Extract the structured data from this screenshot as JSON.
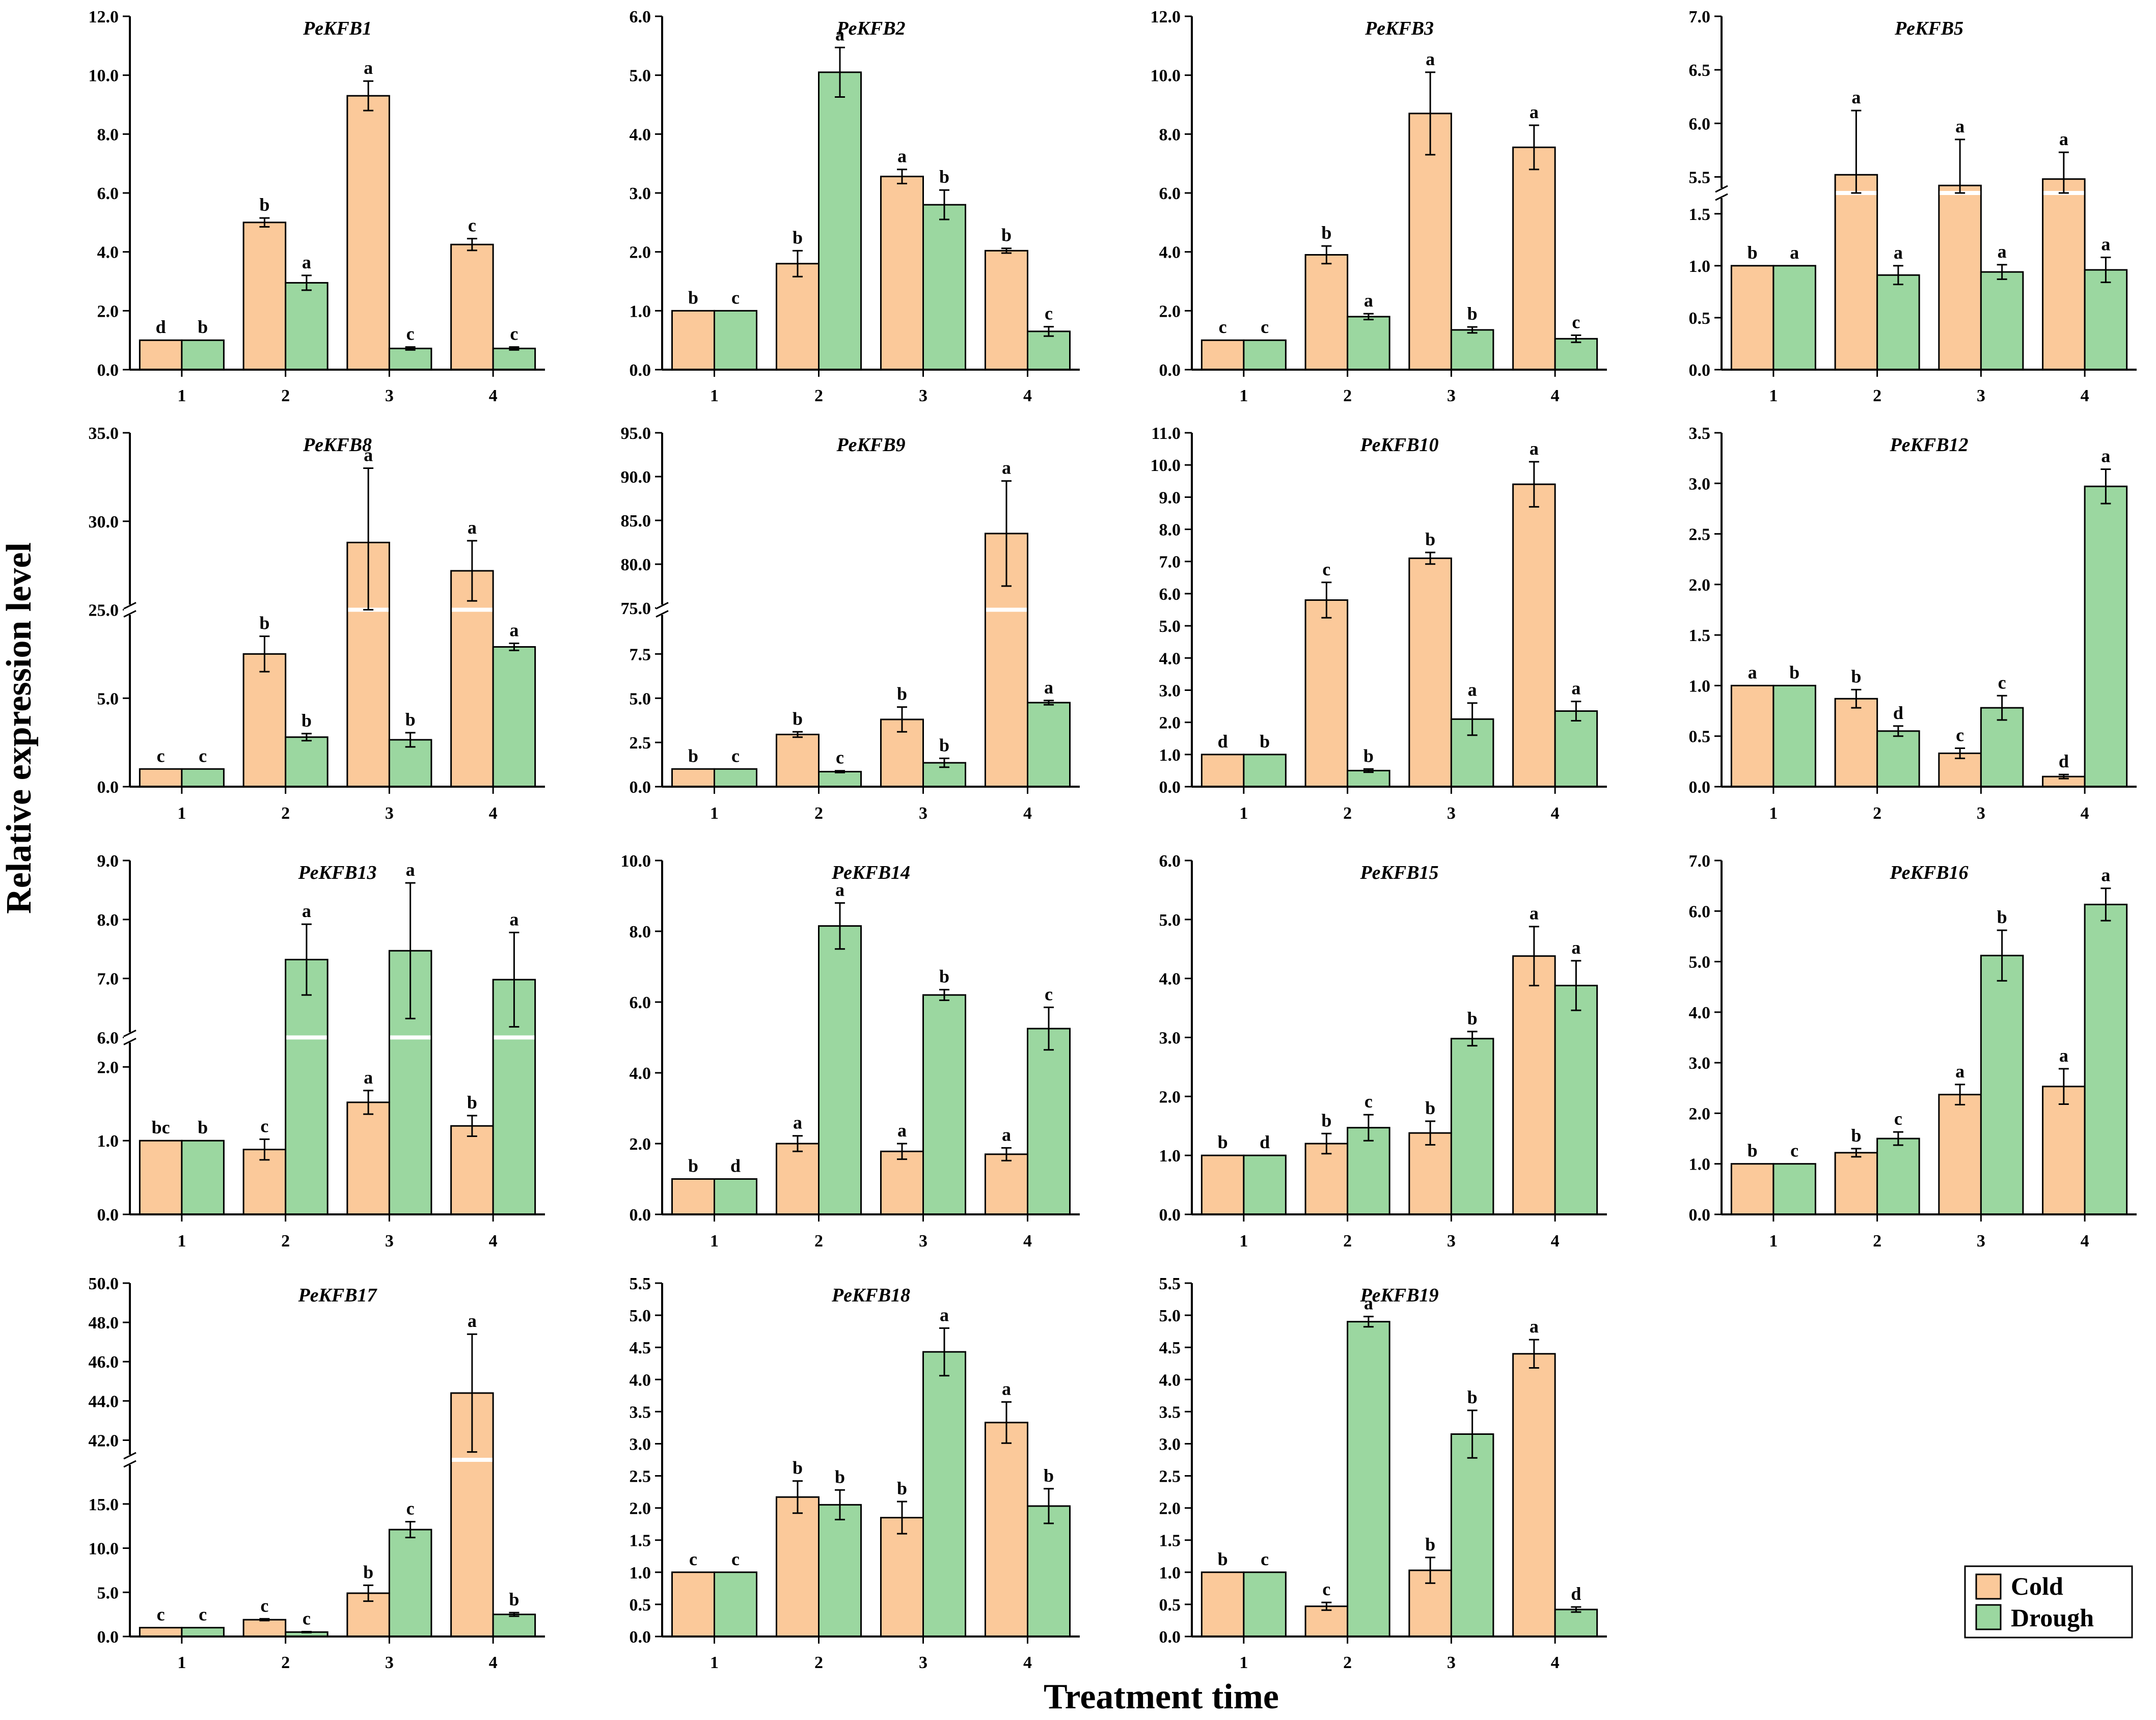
{
  "chart_data": {
    "type": "bar",
    "ylabel": "Relative expression level",
    "xlabel": "Treatment time",
    "legend": [
      {
        "name": "Cold",
        "color": "#FBC99A"
      },
      {
        "name": "Drough",
        "color": "#9BD7A0"
      }
    ],
    "colors": {
      "cold": "#FBC99A",
      "drought": "#9BD7A0",
      "edge": "#000000"
    },
    "categories": [
      "1",
      "2",
      "3",
      "4"
    ],
    "panels": [
      {
        "title": "PeKFB1",
        "ylim": [
          0,
          12
        ],
        "yticks": [
          0,
          2,
          4,
          6,
          8,
          10,
          12
        ],
        "ytick_labels": [
          "0.0",
          "2.0",
          "4.0",
          "6.0",
          "8.0",
          "10.0",
          "12.0"
        ],
        "series": [
          {
            "name": "Cold",
            "values": [
              1.0,
              5.0,
              9.3,
              4.25
            ],
            "errors": [
              0,
              0.15,
              0.5,
              0.2
            ],
            "letters": [
              "d",
              "b",
              "a",
              "c"
            ]
          },
          {
            "name": "Drough",
            "values": [
              1.0,
              2.95,
              0.72,
              0.72
            ],
            "errors": [
              0,
              0.25,
              0.05,
              0.05
            ],
            "letters": [
              "b",
              "a",
              "c",
              "c"
            ]
          }
        ]
      },
      {
        "title": "PeKFB2",
        "ylim": [
          0,
          6
        ],
        "yticks": [
          0,
          1,
          2,
          3,
          4,
          5,
          6
        ],
        "ytick_labels": [
          "0.0",
          "1.0",
          "2.0",
          "3.0",
          "4.0",
          "5.0",
          "6.0"
        ],
        "series": [
          {
            "name": "Cold",
            "values": [
              1.0,
              1.8,
              3.28,
              2.02
            ],
            "errors": [
              0,
              0.22,
              0.12,
              0.04
            ],
            "letters": [
              "b",
              "b",
              "a",
              "b"
            ]
          },
          {
            "name": "Drough",
            "values": [
              1.0,
              5.05,
              2.8,
              0.65
            ],
            "errors": [
              0,
              0.42,
              0.25,
              0.08
            ],
            "letters": [
              "c",
              "a",
              "b",
              "c"
            ]
          }
        ]
      },
      {
        "title": "PeKFB3",
        "ylim": [
          0,
          12
        ],
        "yticks": [
          0,
          2,
          4,
          6,
          8,
          10,
          12
        ],
        "ytick_labels": [
          "0.0",
          "2.0",
          "4.0",
          "6.0",
          "8.0",
          "10.0",
          "12.0"
        ],
        "series": [
          {
            "name": "Cold",
            "values": [
              1.0,
              3.9,
              8.7,
              7.55
            ],
            "errors": [
              0,
              0.3,
              1.4,
              0.75
            ],
            "letters": [
              "c",
              "b",
              "a",
              "a"
            ]
          },
          {
            "name": "Drough",
            "values": [
              1.0,
              1.8,
              1.35,
              1.05
            ],
            "errors": [
              0,
              0.1,
              0.1,
              0.12
            ],
            "letters": [
              "c",
              "a",
              "b",
              "c"
            ]
          }
        ]
      },
      {
        "title": "PeKFB5",
        "break": {
          "at": 1.7,
          "from": 5.35,
          "frac": 0.5
        },
        "ylim": [
          0,
          7
        ],
        "yticks": [
          0,
          0.5,
          1,
          1.5,
          5.5,
          6,
          6.5,
          7
        ],
        "ytick_labels": [
          "0.0",
          "0.5",
          "1.0",
          "1.5",
          "5.5",
          "6.0",
          "6.5",
          "7.0"
        ],
        "series": [
          {
            "name": "Cold",
            "values": [
              1.0,
              5.52,
              5.42,
              5.48
            ],
            "errors": [
              0,
              0.6,
              0.43,
              0.25
            ],
            "letters": [
              "b",
              "a",
              "a",
              "a"
            ]
          },
          {
            "name": "Drough",
            "values": [
              1.0,
              0.91,
              0.94,
              0.96
            ],
            "errors": [
              0,
              0.09,
              0.07,
              0.12
            ],
            "letters": [
              "a",
              "a",
              "a",
              "a"
            ]
          }
        ]
      },
      {
        "title": "PeKFB8",
        "break": {
          "at": 10,
          "from": 25,
          "frac": 0.5
        },
        "ylim": [
          0,
          35
        ],
        "yticks": [
          0,
          5,
          25,
          30,
          35
        ],
        "ytick_labels": [
          "0.0",
          "5.0",
          "25.0",
          "30.0",
          "35.0"
        ],
        "series": [
          {
            "name": "Cold",
            "values": [
              1.0,
              7.5,
              28.8,
              27.2
            ],
            "errors": [
              0,
              1.0,
              4.2,
              1.7
            ],
            "letters": [
              "c",
              "b",
              "a",
              "a"
            ]
          },
          {
            "name": "Drough",
            "values": [
              1.0,
              2.8,
              2.65,
              7.9
            ],
            "errors": [
              0,
              0.2,
              0.4,
              0.2
            ],
            "letters": [
              "c",
              "b",
              "b",
              "a"
            ]
          }
        ]
      },
      {
        "title": "PeKFB9",
        "break": {
          "at": 10,
          "from": 74.8,
          "frac": 0.5
        },
        "ylim": [
          0,
          95
        ],
        "yticks": [
          0,
          2.5,
          5,
          7.5,
          75,
          80,
          85,
          90,
          95
        ],
        "ytick_labels": [
          "0.0",
          "2.5",
          "5.0",
          "7.5",
          "75.0",
          "80.0",
          "85.0",
          "90.0",
          "95.0"
        ],
        "series": [
          {
            "name": "Cold",
            "values": [
              1.0,
              2.95,
              3.8,
              83.5
            ],
            "errors": [
              0,
              0.15,
              0.7,
              6.0
            ],
            "letters": [
              "b",
              "b",
              "b",
              "a"
            ]
          },
          {
            "name": "Drough",
            "values": [
              1.0,
              0.85,
              1.35,
              4.75
            ],
            "errors": [
              0,
              0.05,
              0.25,
              0.12
            ],
            "letters": [
              "c",
              "c",
              "b",
              "a"
            ]
          }
        ]
      },
      {
        "title": "PeKFB10",
        "ylim": [
          0,
          11
        ],
        "yticks": [
          0,
          1,
          2,
          3,
          4,
          5,
          6,
          7,
          8,
          9,
          10,
          11
        ],
        "ytick_labels": [
          "0.0",
          "1.0",
          "2.0",
          "3.0",
          "4.0",
          "5.0",
          "6.0",
          "7.0",
          "8.0",
          "9.0",
          "10.0",
          "11.0"
        ],
        "series": [
          {
            "name": "Cold",
            "values": [
              1.0,
              5.8,
              7.1,
              9.4
            ],
            "errors": [
              0,
              0.55,
              0.18,
              0.7
            ],
            "letters": [
              "d",
              "c",
              "b",
              "a"
            ]
          },
          {
            "name": "Drough",
            "values": [
              1.0,
              0.5,
              2.1,
              2.35
            ],
            "errors": [
              0,
              0.05,
              0.5,
              0.3
            ],
            "letters": [
              "b",
              "b",
              "a",
              "a"
            ]
          }
        ]
      },
      {
        "title": "PeKFB12",
        "ylim": [
          0,
          3.5
        ],
        "yticks": [
          0,
          0.5,
          1,
          1.5,
          2,
          2.5,
          3,
          3.5
        ],
        "ytick_labels": [
          "0.0",
          "0.5",
          "1.0",
          "1.5",
          "2.0",
          "2.5",
          "3.0",
          "3.5"
        ],
        "series": [
          {
            "name": "Cold",
            "values": [
              1.0,
              0.87,
              0.33,
              0.1
            ],
            "errors": [
              0,
              0.09,
              0.05,
              0.02
            ],
            "letters": [
              "a",
              "b",
              "c",
              "d"
            ]
          },
          {
            "name": "Drough",
            "values": [
              1.0,
              0.55,
              0.78,
              2.97
            ],
            "errors": [
              0,
              0.05,
              0.12,
              0.17
            ],
            "letters": [
              "b",
              "d",
              "c",
              "a"
            ]
          }
        ]
      },
      {
        "title": "PeKFB13",
        "break": {
          "at": 2.4,
          "from": 6,
          "frac": 0.5
        },
        "ylim": [
          0,
          9
        ],
        "yticks": [
          0,
          1,
          2,
          6,
          7,
          8,
          9
        ],
        "ytick_labels": [
          "0.0",
          "1.0",
          "2.0",
          "6.0",
          "7.0",
          "8.0",
          "9.0"
        ],
        "series": [
          {
            "name": "Cold",
            "values": [
              1.0,
              0.88,
              1.52,
              1.2
            ],
            "errors": [
              0,
              0.14,
              0.16,
              0.14
            ],
            "letters": [
              "bc",
              "c",
              "a",
              "b"
            ]
          },
          {
            "name": "Drough",
            "values": [
              1.0,
              7.32,
              7.47,
              6.98
            ],
            "errors": [
              0,
              0.6,
              1.15,
              0.8
            ],
            "letters": [
              "b",
              "a",
              "a",
              "a"
            ]
          }
        ]
      },
      {
        "title": "PeKFB14",
        "ylim": [
          0,
          10
        ],
        "yticks": [
          0,
          2,
          4,
          6,
          8,
          10
        ],
        "ytick_labels": [
          "0.0",
          "2.0",
          "4.0",
          "6.0",
          "8.0",
          "10.0"
        ],
        "series": [
          {
            "name": "Cold",
            "values": [
              1.0,
              2.0,
              1.78,
              1.7
            ],
            "errors": [
              0,
              0.22,
              0.22,
              0.18
            ],
            "letters": [
              "b",
              "a",
              "a",
              "a"
            ]
          },
          {
            "name": "Drough",
            "values": [
              1.0,
              8.15,
              6.2,
              5.25
            ],
            "errors": [
              0,
              0.65,
              0.15,
              0.6
            ],
            "letters": [
              "d",
              "a",
              "b",
              "c"
            ]
          }
        ]
      },
      {
        "title": "PeKFB15",
        "ylim": [
          0,
          6
        ],
        "yticks": [
          0,
          1,
          2,
          3,
          4,
          5,
          6
        ],
        "ytick_labels": [
          "0.0",
          "1.0",
          "2.0",
          "3.0",
          "4.0",
          "5.0",
          "6.0"
        ],
        "series": [
          {
            "name": "Cold",
            "values": [
              1.0,
              1.2,
              1.38,
              4.38
            ],
            "errors": [
              0,
              0.17,
              0.2,
              0.5
            ],
            "letters": [
              "b",
              "b",
              "b",
              "a"
            ]
          },
          {
            "name": "Drough",
            "values": [
              1.0,
              1.47,
              2.98,
              3.88
            ],
            "errors": [
              0,
              0.22,
              0.12,
              0.42
            ],
            "letters": [
              "d",
              "c",
              "b",
              "a"
            ]
          }
        ]
      },
      {
        "title": "PeKFB16",
        "ylim": [
          0,
          7
        ],
        "yticks": [
          0,
          1,
          2,
          3,
          4,
          5,
          6,
          7
        ],
        "ytick_labels": [
          "0.0",
          "1.0",
          "2.0",
          "3.0",
          "4.0",
          "5.0",
          "6.0",
          "7.0"
        ],
        "series": [
          {
            "name": "Cold",
            "values": [
              1.0,
              1.22,
              2.37,
              2.53
            ],
            "errors": [
              0,
              0.08,
              0.2,
              0.35
            ],
            "letters": [
              "b",
              "b",
              "a",
              "a"
            ]
          },
          {
            "name": "Drough",
            "values": [
              1.0,
              1.5,
              5.12,
              6.13
            ],
            "errors": [
              0,
              0.13,
              0.5,
              0.32
            ],
            "letters": [
              "c",
              "c",
              "b",
              "a"
            ]
          }
        ]
      },
      {
        "title": "PeKFB17",
        "break": {
          "at": 20,
          "from": 41,
          "frac": 0.5
        },
        "ylim": [
          0,
          50
        ],
        "yticks": [
          0,
          5,
          10,
          15,
          42,
          44,
          46,
          48,
          50
        ],
        "ytick_labels": [
          "0.0",
          "5.0",
          "10.0",
          "15.0",
          "42.0",
          "44.0",
          "46.0",
          "48.0",
          "50.0"
        ],
        "series": [
          {
            "name": "Cold",
            "values": [
              1.0,
              1.9,
              4.9,
              44.4
            ],
            "errors": [
              0,
              0.1,
              0.9,
              3.0
            ],
            "letters": [
              "c",
              "c",
              "b",
              "a"
            ]
          },
          {
            "name": "Drough",
            "values": [
              1.0,
              0.5,
              12.1,
              2.5
            ],
            "errors": [
              0,
              0.05,
              0.9,
              0.2
            ],
            "letters": [
              "c",
              "c",
              "c",
              "b"
            ]
          }
        ]
      },
      {
        "title": "PeKFB18",
        "ylim": [
          0,
          5.5
        ],
        "yticks": [
          0,
          0.5,
          1,
          1.5,
          2,
          2.5,
          3,
          3.5,
          4,
          4.5,
          5,
          5.5
        ],
        "ytick_labels": [
          "0.0",
          "0.5",
          "1.0",
          "1.5",
          "2.0",
          "2.5",
          "3.0",
          "3.5",
          "4.0",
          "4.5",
          "5.0",
          "5.5"
        ],
        "series": [
          {
            "name": "Cold",
            "values": [
              1.0,
              2.17,
              1.85,
              3.33
            ],
            "errors": [
              0,
              0.25,
              0.25,
              0.32
            ],
            "letters": [
              "c",
              "b",
              "b",
              "a"
            ]
          },
          {
            "name": "Drough",
            "values": [
              1.0,
              2.05,
              4.43,
              2.03
            ],
            "errors": [
              0,
              0.23,
              0.37,
              0.27
            ],
            "letters": [
              "c",
              "b",
              "a",
              "b"
            ]
          }
        ]
      },
      {
        "title": "PeKFB19",
        "ylim": [
          0,
          5.5
        ],
        "yticks": [
          0,
          0.5,
          1,
          1.5,
          2,
          2.5,
          3,
          3.5,
          4,
          4.5,
          5,
          5.5
        ],
        "ytick_labels": [
          "0.0",
          "0.5",
          "1.0",
          "1.5",
          "2.0",
          "2.5",
          "3.0",
          "3.5",
          "4.0",
          "4.5",
          "5.0",
          "5.5"
        ],
        "series": [
          {
            "name": "Cold",
            "values": [
              1.0,
              0.47,
              1.03,
              4.4
            ],
            "errors": [
              0,
              0.06,
              0.2,
              0.22
            ],
            "letters": [
              "b",
              "c",
              "b",
              "a"
            ]
          },
          {
            "name": "Drough",
            "values": [
              1.0,
              4.9,
              3.15,
              0.42
            ],
            "errors": [
              0,
              0.08,
              0.37,
              0.04
            ],
            "letters": [
              "c",
              "a",
              "b",
              "d"
            ]
          }
        ]
      }
    ]
  }
}
